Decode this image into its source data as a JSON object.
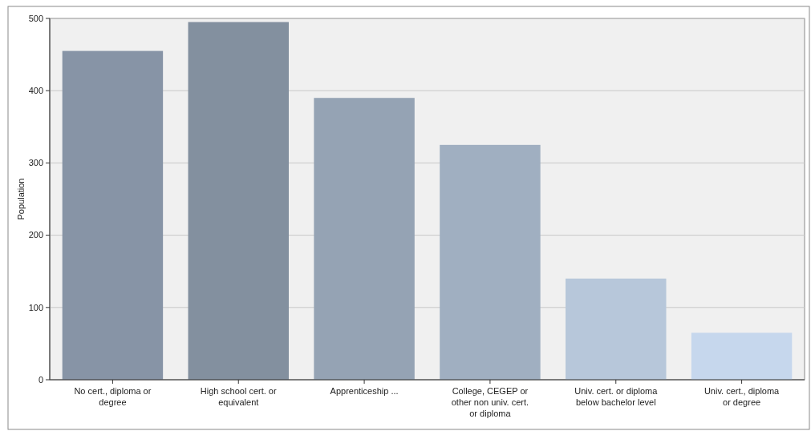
{
  "chart_data": {
    "type": "bar",
    "ylabel": "Population",
    "categories": [
      "No cert., diploma or degree",
      "High school cert. or equivalent",
      "Apprenticeship ...",
      "College, CEGEP or other non univ. cert. or diploma",
      "Univ. cert. or diploma below bachelor level",
      "Univ. cert., diploma or degree"
    ],
    "values": [
      455,
      495,
      390,
      325,
      140,
      65
    ],
    "colors": [
      "#8794a6",
      "#83909f",
      "#95a3b4",
      "#a0afc1",
      "#b7c7da",
      "#c6d7ed"
    ],
    "ylim": [
      0,
      500
    ],
    "yticks": [
      0,
      100,
      200,
      300,
      400,
      500
    ],
    "grid": "y"
  }
}
